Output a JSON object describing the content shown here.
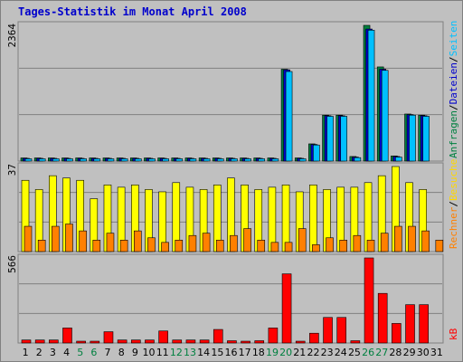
{
  "title": "Tages-Statistik im Monat April 2008",
  "panels": {
    "top": {
      "max_label": "2364",
      "legend": [
        {
          "text": "Anfragen",
          "color": "#008040"
        },
        {
          "text": "/",
          "color": "#000000"
        },
        {
          "text": "Dateien",
          "color": "#0000cc"
        },
        {
          "text": "/",
          "color": "#000000"
        },
        {
          "text": "Seiten",
          "color": "#00c0ff"
        }
      ]
    },
    "middle": {
      "max_label": "37",
      "legend": [
        {
          "text": "Rechner",
          "color": "#ff8000"
        },
        {
          "text": "/",
          "color": "#000000"
        },
        {
          "text": "Besuche",
          "color": "#ffd700"
        }
      ]
    },
    "bottom": {
      "max_label": "566",
      "legend": [
        {
          "text": "kB",
          "color": "#ff0000"
        }
      ]
    }
  },
  "chart_data": {
    "type": "bar",
    "x_labels": [
      "1",
      "2",
      "3",
      "4",
      "5",
      "6",
      "7",
      "8",
      "9",
      "10",
      "11",
      "12",
      "13",
      "14",
      "15",
      "16",
      "17",
      "18",
      "19",
      "20",
      "21",
      "22",
      "23",
      "24",
      "25",
      "26",
      "27",
      "28",
      "29",
      "30",
      "31"
    ],
    "weekend_days": [
      5,
      6,
      12,
      13,
      19,
      20,
      26,
      27
    ],
    "colors": {
      "weekday_label": "#000000",
      "weekend_label": "#008040",
      "anfragen": "#008040",
      "dateien": "#0000cc",
      "seiten": "#00c0ff",
      "rechner": "#ff8000",
      "besuche": "#ffff00",
      "kb": "#ff0000"
    },
    "top": {
      "ymax": 2364,
      "series": [
        {
          "name": "Anfragen",
          "values": [
            55,
            55,
            55,
            55,
            55,
            55,
            55,
            55,
            55,
            55,
            55,
            55,
            55,
            55,
            55,
            55,
            55,
            55,
            55,
            1600,
            55,
            300,
            800,
            800,
            80,
            2364,
            1640,
            90,
            820,
            800,
            0
          ]
        },
        {
          "name": "Dateien",
          "values": [
            48,
            48,
            48,
            48,
            48,
            48,
            48,
            48,
            48,
            48,
            48,
            48,
            48,
            48,
            48,
            48,
            48,
            48,
            48,
            1590,
            48,
            290,
            790,
            790,
            70,
            2300,
            1600,
            80,
            810,
            790,
            0
          ]
        },
        {
          "name": "Seiten",
          "values": [
            40,
            40,
            40,
            40,
            40,
            40,
            40,
            40,
            40,
            40,
            40,
            40,
            40,
            40,
            40,
            40,
            40,
            40,
            40,
            1560,
            40,
            280,
            780,
            780,
            60,
            2280,
            1580,
            70,
            800,
            780,
            0
          ]
        }
      ]
    },
    "middle": {
      "ymax": 37,
      "series": [
        {
          "name": "Besuche",
          "values": [
            31,
            27,
            33,
            32,
            31,
            23,
            29,
            28,
            29,
            27,
            26,
            30,
            28,
            27,
            29,
            32,
            29,
            27,
            28,
            29,
            26,
            29,
            27,
            28,
            28,
            30,
            33,
            37,
            30,
            27,
            0
          ]
        },
        {
          "name": "Rechner",
          "values": [
            11,
            5,
            11,
            12,
            9,
            5,
            8,
            5,
            9,
            6,
            4,
            5,
            7,
            8,
            5,
            7,
            10,
            5,
            4,
            4,
            10,
            3,
            6,
            5,
            7,
            5,
            8,
            11,
            11,
            9,
            5
          ]
        }
      ]
    },
    "bottom": {
      "ymax": 566,
      "series": [
        {
          "name": "kB",
          "values": [
            20,
            20,
            20,
            100,
            10,
            10,
            75,
            20,
            20,
            20,
            80,
            20,
            20,
            20,
            90,
            15,
            10,
            15,
            100,
            460,
            10,
            65,
            170,
            170,
            15,
            566,
            330,
            130,
            255,
            255,
            0
          ]
        }
      ]
    }
  }
}
